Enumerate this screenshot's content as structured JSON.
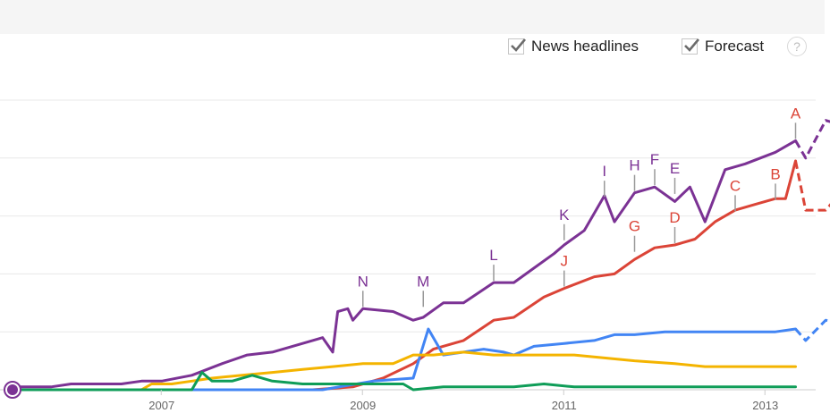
{
  "toolbar": {
    "news_headlines": {
      "label": "News headlines",
      "checked": true
    },
    "forecast": {
      "label": "Forecast",
      "checked": true
    },
    "help_symbol": "?"
  },
  "colors": {
    "purple": "#7b3294",
    "red": "#db4437",
    "blue": "#4285f4",
    "yellow": "#f4b400",
    "green": "#0f9d58",
    "grid": "#e8e8e8",
    "axis_text": "#666666"
  },
  "chart_data": {
    "type": "line",
    "title": "",
    "xlabel": "",
    "ylabel": "",
    "x_ticks": [
      "2007",
      "2009",
      "2011",
      "2013"
    ],
    "xlim": [
      2006.0,
      2014.0
    ],
    "ylim": [
      0,
      100
    ],
    "y_gridlines": [
      20,
      40,
      60,
      80,
      100
    ],
    "grid": true,
    "legend": "none",
    "series": [
      {
        "color": "purple",
        "points": [
          [
            2006.0,
            1
          ],
          [
            2006.4,
            1
          ],
          [
            2006.6,
            2
          ],
          [
            2007.1,
            2
          ],
          [
            2007.3,
            3
          ],
          [
            2007.5,
            3
          ],
          [
            2007.8,
            5
          ],
          [
            2008.1,
            9
          ],
          [
            2008.35,
            12
          ],
          [
            2008.6,
            13
          ],
          [
            2008.9,
            16
          ],
          [
            2009.1,
            18
          ],
          [
            2009.2,
            13
          ],
          [
            2009.25,
            27
          ],
          [
            2009.35,
            28
          ],
          [
            2009.4,
            24
          ],
          [
            2009.5,
            28
          ],
          [
            2009.8,
            27
          ],
          [
            2010.0,
            24
          ],
          [
            2010.1,
            25
          ],
          [
            2010.3,
            30
          ],
          [
            2010.5,
            30
          ],
          [
            2010.8,
            37
          ],
          [
            2011.0,
            37
          ],
          [
            2011.2,
            42
          ],
          [
            2011.4,
            47
          ],
          [
            2011.5,
            50
          ],
          [
            2011.7,
            55
          ],
          [
            2011.9,
            67
          ],
          [
            2012.0,
            58
          ],
          [
            2012.2,
            68
          ],
          [
            2012.4,
            70
          ],
          [
            2012.6,
            65
          ],
          [
            2012.75,
            70
          ],
          [
            2012.9,
            58
          ],
          [
            2013.1,
            76
          ],
          [
            2013.3,
            78
          ],
          [
            2013.45,
            80
          ],
          [
            2013.6,
            82
          ],
          [
            2013.7,
            84
          ],
          [
            2013.8,
            86
          ]
        ],
        "forecast": [
          [
            2013.8,
            86
          ],
          [
            2013.9,
            80
          ],
          [
            2014.1,
            93
          ],
          [
            2014.3,
            91
          ],
          [
            2014.5,
            94
          ],
          [
            2014.7,
            92
          ],
          [
            2014.9,
            95
          ]
        ]
      },
      {
        "color": "red",
        "points": [
          [
            2006.0,
            0
          ],
          [
            2009.0,
            0
          ],
          [
            2009.4,
            1
          ],
          [
            2009.7,
            4
          ],
          [
            2010.0,
            9
          ],
          [
            2010.2,
            14
          ],
          [
            2010.5,
            17
          ],
          [
            2010.8,
            24
          ],
          [
            2011.0,
            25
          ],
          [
            2011.3,
            32
          ],
          [
            2011.5,
            35
          ],
          [
            2011.8,
            39
          ],
          [
            2012.0,
            40
          ],
          [
            2012.2,
            45
          ],
          [
            2012.4,
            49
          ],
          [
            2012.6,
            50
          ],
          [
            2012.8,
            52
          ],
          [
            2013.0,
            58
          ],
          [
            2013.2,
            62
          ],
          [
            2013.4,
            64
          ],
          [
            2013.6,
            66
          ],
          [
            2013.7,
            66
          ],
          [
            2013.8,
            79
          ]
        ],
        "forecast": [
          [
            2013.8,
            79
          ],
          [
            2013.9,
            62
          ],
          [
            2014.1,
            62
          ],
          [
            2014.3,
            70
          ],
          [
            2014.6,
            71
          ],
          [
            2014.9,
            74
          ]
        ]
      },
      {
        "color": "blue",
        "points": [
          [
            2006.0,
            0
          ],
          [
            2009.1,
            0
          ],
          [
            2009.6,
            3
          ],
          [
            2010.0,
            4
          ],
          [
            2010.15,
            21
          ],
          [
            2010.3,
            12
          ],
          [
            2010.5,
            13
          ],
          [
            2010.7,
            14
          ],
          [
            2010.9,
            13
          ],
          [
            2011.0,
            12
          ],
          [
            2011.2,
            15
          ],
          [
            2011.5,
            16
          ],
          [
            2011.8,
            17
          ],
          [
            2012.0,
            19
          ],
          [
            2012.2,
            19
          ],
          [
            2012.5,
            20
          ],
          [
            2012.8,
            20
          ],
          [
            2013.0,
            20
          ],
          [
            2013.4,
            20
          ],
          [
            2013.6,
            20
          ],
          [
            2013.8,
            21
          ]
        ],
        "forecast": [
          [
            2013.8,
            21
          ],
          [
            2013.9,
            17
          ],
          [
            2014.1,
            24
          ],
          [
            2014.3,
            22
          ],
          [
            2014.6,
            23
          ],
          [
            2014.9,
            24
          ]
        ]
      },
      {
        "color": "yellow",
        "points": [
          [
            2006.0,
            0
          ],
          [
            2007.3,
            0
          ],
          [
            2007.4,
            2
          ],
          [
            2007.6,
            2
          ],
          [
            2007.8,
            3
          ],
          [
            2008.0,
            4
          ],
          [
            2008.3,
            5
          ],
          [
            2008.6,
            6
          ],
          [
            2008.9,
            7
          ],
          [
            2009.2,
            8
          ],
          [
            2009.5,
            9
          ],
          [
            2009.8,
            9
          ],
          [
            2010.0,
            12
          ],
          [
            2010.2,
            12
          ],
          [
            2010.5,
            13
          ],
          [
            2010.8,
            12
          ],
          [
            2011.0,
            12
          ],
          [
            2011.3,
            12
          ],
          [
            2011.6,
            12
          ],
          [
            2011.9,
            11
          ],
          [
            2012.2,
            10
          ],
          [
            2012.6,
            9
          ],
          [
            2012.9,
            8
          ],
          [
            2013.2,
            8
          ],
          [
            2013.5,
            8
          ],
          [
            2013.8,
            8
          ]
        ]
      },
      {
        "color": "green",
        "points": [
          [
            2006.0,
            0
          ],
          [
            2007.8,
            0
          ],
          [
            2007.9,
            6
          ],
          [
            2008.0,
            3
          ],
          [
            2008.2,
            3
          ],
          [
            2008.4,
            5
          ],
          [
            2008.6,
            3
          ],
          [
            2008.9,
            2
          ],
          [
            2009.2,
            2
          ],
          [
            2009.6,
            2
          ],
          [
            2009.9,
            2
          ],
          [
            2010.0,
            0
          ],
          [
            2010.3,
            1
          ],
          [
            2010.6,
            1
          ],
          [
            2011.0,
            1
          ],
          [
            2011.3,
            2
          ],
          [
            2011.6,
            1
          ],
          [
            2012.0,
            1
          ],
          [
            2012.5,
            1
          ],
          [
            2013.0,
            1
          ],
          [
            2013.8,
            1
          ]
        ]
      }
    ],
    "annotations": [
      {
        "label": "N",
        "x": 2009.5,
        "y": 28,
        "series": "purple"
      },
      {
        "label": "M",
        "x": 2010.1,
        "y": 28,
        "series": "purple"
      },
      {
        "label": "L",
        "x": 2010.8,
        "y": 37,
        "series": "purple"
      },
      {
        "label": "K",
        "x": 2011.5,
        "y": 51,
        "series": "purple"
      },
      {
        "label": "J",
        "x": 2011.5,
        "y": 35,
        "series": "red"
      },
      {
        "label": "I",
        "x": 2011.9,
        "y": 66,
        "series": "purple"
      },
      {
        "label": "H",
        "x": 2012.2,
        "y": 68,
        "series": "purple"
      },
      {
        "label": "G",
        "x": 2012.2,
        "y": 47,
        "series": "red"
      },
      {
        "label": "F",
        "x": 2012.4,
        "y": 70,
        "series": "purple"
      },
      {
        "label": "E",
        "x": 2012.6,
        "y": 67,
        "series": "purple"
      },
      {
        "label": "D",
        "x": 2012.6,
        "y": 50,
        "series": "red"
      },
      {
        "label": "C",
        "x": 2013.2,
        "y": 61,
        "series": "red"
      },
      {
        "label": "B",
        "x": 2013.6,
        "y": 65,
        "series": "red"
      },
      {
        "label": "A",
        "x": 2013.8,
        "y": 86,
        "series": "red"
      }
    ]
  }
}
